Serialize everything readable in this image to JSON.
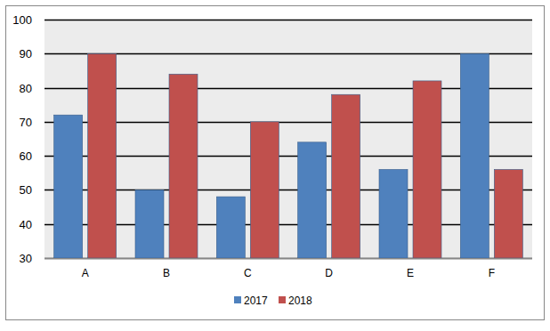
{
  "chart_data": {
    "type": "bar",
    "categories": [
      "A",
      "B",
      "C",
      "D",
      "E",
      "F"
    ],
    "series": [
      {
        "name": "2017",
        "color": "#4f81bd",
        "values": [
          72,
          50,
          48,
          64,
          56,
          90
        ]
      },
      {
        "name": "2018",
        "color": "#c0504d",
        "values": [
          90,
          84,
          70,
          78,
          82,
          56
        ]
      }
    ],
    "ylim": [
      30,
      100
    ],
    "yticks": [
      30,
      40,
      50,
      60,
      70,
      80,
      90,
      100
    ],
    "grid": true,
    "legend": "bottom"
  }
}
